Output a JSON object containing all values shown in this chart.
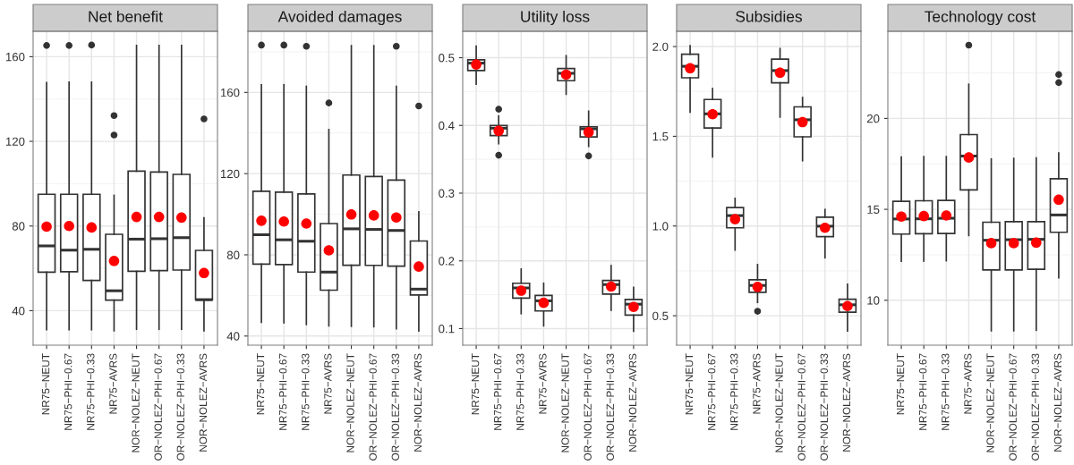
{
  "chart_data": [
    {
      "type": "box",
      "title": "Net benefit",
      "categories": [
        "NR75−NEUT",
        "NR75−PHI−0.67",
        "NR75−PHI−0.33",
        "NR75−AVRS",
        "NOR−NOLEZ−NEUT",
        "OR−NOLEZ−PHI−0.67",
        "OR−NOLEZ−PHI−0.33",
        "NOR−NOLEZ−AVRS"
      ],
      "ylim": [
        23.7,
        172
      ],
      "yticks": [
        40,
        80,
        120,
        160
      ],
      "grid": true,
      "marker": "circle",
      "series": [
        {
          "type": "box",
          "color": "#333333",
          "boxes": [
            {
              "low": 31,
              "q1": 58.2,
              "median": 70.6,
              "q3": 95,
              "high": 147.8,
              "outliers": [
                165.3
              ]
            },
            {
              "low": 31,
              "q1": 58.4,
              "median": 68.6,
              "q3": 95,
              "high": 148,
              "outliers": [
                165.3
              ]
            },
            {
              "low": 31,
              "q1": 54.3,
              "median": 69,
              "q3": 95,
              "high": 148,
              "outliers": [
                165.5
              ]
            },
            {
              "low": 30.5,
              "q1": 45,
              "median": 49.4,
              "q3": 76.1,
              "high": 94.5,
              "outliers": [
                132.2,
                123
              ]
            },
            {
              "low": 31.2,
              "q1": 58.6,
              "median": 73.8,
              "q3": 105.9,
              "high": 165.3
            },
            {
              "low": 31.2,
              "q1": 58.9,
              "median": 74,
              "q3": 105.5,
              "high": 165.3
            },
            {
              "low": 31.2,
              "q1": 59.2,
              "median": 74.5,
              "q3": 104.4,
              "high": 165.3
            },
            {
              "low": 30.5,
              "q1": 45.1,
              "median": 45.2,
              "q3": 68.5,
              "high": 83.9,
              "outliers": [
                130.6
              ]
            }
          ]
        },
        {
          "type": "scatter",
          "color": "#ff0000",
          "x": [
            "NR75−NEUT",
            "NR75−PHI−0.67",
            "NR75−PHI−0.33",
            "NR75−AVRS",
            "NOR−NOLEZ−NEUT",
            "OR−NOLEZ−PHI−0.67",
            "OR−NOLEZ−PHI−0.33",
            "NOR−NOLEZ−AVRS"
          ],
          "values": [
            79.7,
            80,
            79.3,
            63.5,
            84.3,
            84.3,
            84,
            57.8
          ]
        }
      ]
    },
    {
      "type": "box",
      "title": "Avoided damages",
      "categories": [
        "NR75−NEUT",
        "NR75−PHI−0.67",
        "NR75−PHI−0.33",
        "NR75−AVRS",
        "NOR−NOLEZ−NEUT",
        "OR−NOLEZ−PHI−0.67",
        "OR−NOLEZ−PHI−0.33",
        "NOR−NOLEZ−AVRS"
      ],
      "ylim": [
        35.5,
        190.1
      ],
      "yticks": [
        40,
        80,
        120,
        160
      ],
      "grid": true,
      "marker": "circle",
      "series": [
        {
          "type": "box",
          "color": "#333333",
          "boxes": [
            {
              "low": 46.8,
              "q1": 75.4,
              "median": 89.9,
              "q3": 111.3,
              "high": 163.8,
              "outliers": [
                183.3
              ]
            },
            {
              "low": 46.5,
              "q1": 75.2,
              "median": 87.4,
              "q3": 110.9,
              "high": 163.8,
              "outliers": [
                183.3
              ]
            },
            {
              "low": 45.7,
              "q1": 71.5,
              "median": 86.7,
              "q3": 110,
              "high": 163,
              "outliers": [
                182.7
              ]
            },
            {
              "low": 45,
              "q1": 62.6,
              "median": 71.5,
              "q3": 95.4,
              "high": 141.7,
              "outliers": [
                154.8
              ]
            },
            {
              "low": 44.8,
              "q1": 74.9,
              "median": 92.8,
              "q3": 119.3,
              "high": 183
            },
            {
              "low": 44.6,
              "q1": 74.8,
              "median": 92.5,
              "q3": 118.6,
              "high": 183
            },
            {
              "low": 43.6,
              "q1": 74.4,
              "median": 92,
              "q3": 116.8,
              "high": 163,
              "outliers": [
                182.7
              ]
            },
            {
              "low": 42.5,
              "q1": 60.2,
              "median": 63.1,
              "q3": 86.8,
              "high": 101.2,
              "outliers": [
                153.3
              ]
            }
          ]
        },
        {
          "type": "scatter",
          "color": "#ff0000",
          "x": [
            "NR75−NEUT",
            "NR75−PHI−0.67",
            "NR75−PHI−0.33",
            "NR75−AVRS",
            "NOR−NOLEZ−NEUT",
            "OR−NOLEZ−PHI−0.67",
            "OR−NOLEZ−PHI−0.33",
            "NOR−NOLEZ−AVRS"
          ],
          "values": [
            96.8,
            96.4,
            95.4,
            82.2,
            99.9,
            99.4,
            98.4,
            74.2
          ]
        }
      ]
    },
    {
      "type": "box",
      "title": "Utility loss",
      "categories": [
        "NR75−NEUT",
        "NR75−PHI−0.67",
        "NR75−PHI−0.33",
        "NR75−AVRS",
        "NOR−NOLEZ−NEUT",
        "OR−NOLEZ−PHI−0.67",
        "OR−NOLEZ−PHI−0.33",
        "NOR−NOLEZ−AVRS"
      ],
      "ylim": [
        0.0755,
        0.539
      ],
      "yticks": [
        0.1,
        0.2,
        0.3,
        0.4,
        0.5
      ],
      "grid": true,
      "marker": "circle",
      "series": [
        {
          "type": "box",
          "color": "#333333",
          "boxes": [
            {
              "low": 0.461,
              "q1": 0.481,
              "median": 0.492,
              "q3": 0.497,
              "high": 0.517
            },
            {
              "low": 0.373,
              "q1": 0.385,
              "median": 0.396,
              "q3": 0.4,
              "high": 0.414,
              "outliers": [
                0.424,
                0.356
              ]
            },
            {
              "low": 0.122,
              "q1": 0.145,
              "median": 0.16,
              "q3": 0.167,
              "high": 0.188
            },
            {
              "low": 0.104,
              "q1": 0.126,
              "median": 0.141,
              "q3": 0.149,
              "high": 0.167
            },
            {
              "low": 0.446,
              "q1": 0.466,
              "median": 0.477,
              "q3": 0.484,
              "high": 0.503
            },
            {
              "low": 0.369,
              "q1": 0.383,
              "median": 0.395,
              "q3": 0.398,
              "high": 0.421,
              "outliers": [
                0.355
              ]
            },
            {
              "low": 0.127,
              "q1": 0.151,
              "median": 0.165,
              "q3": 0.171,
              "high": 0.193
            },
            {
              "low": 0.096,
              "q1": 0.12,
              "median": 0.136,
              "q3": 0.143,
              "high": 0.161
            }
          ]
        },
        {
          "type": "scatter",
          "color": "#ff0000",
          "x": [
            "NR75−NEUT",
            "NR75−PHI−0.67",
            "NR75−PHI−0.33",
            "NR75−AVRS",
            "NOR−NOLEZ−NEUT",
            "OR−NOLEZ−PHI−0.67",
            "OR−NOLEZ−PHI−0.33",
            "NOR−NOLEZ−AVRS"
          ],
          "values": [
            0.49,
            0.392,
            0.156,
            0.138,
            0.475,
            0.39,
            0.162,
            0.132
          ]
        }
      ]
    },
    {
      "type": "box",
      "title": "Subsidies",
      "categories": [
        "NR75−NEUT",
        "NR75−PHI−0.67",
        "NR75−PHI−0.33",
        "NR75−AVRS",
        "NOR−NOLEZ−NEUT",
        "OR−NOLEZ−PHI−0.67",
        "OR−NOLEZ−PHI−0.33",
        "NOR−NOLEZ−AVRS"
      ],
      "ylim": [
        0.336,
        2.085
      ],
      "yticks": [
        {
          "value": 0.5,
          "label": "0.5"
        },
        {
          "value": 1,
          "label": "1.0"
        },
        {
          "value": 1.5,
          "label": "1.5"
        },
        {
          "value": 2,
          "label": "2.0"
        }
      ],
      "grid": true,
      "marker": "circle",
      "series": [
        {
          "type": "box",
          "color": "#333333",
          "boxes": [
            {
              "low": 1.634,
              "q1": 1.826,
              "median": 1.89,
              "q3": 1.957,
              "high": 2.005
            },
            {
              "low": 1.385,
              "q1": 1.546,
              "median": 1.625,
              "q3": 1.705,
              "high": 1.766
            },
            {
              "low": 0.866,
              "q1": 0.99,
              "median": 1.058,
              "q3": 1.103,
              "high": 1.154
            },
            {
              "low": 0.574,
              "q1": 0.631,
              "median": 0.669,
              "q3": 0.7,
              "high": 0.785,
              "outliers": [
                0.525
              ]
            },
            {
              "low": 1.607,
              "q1": 1.798,
              "median": 1.866,
              "q3": 1.93,
              "high": 1.989
            },
            {
              "low": 1.364,
              "q1": 1.497,
              "median": 1.592,
              "q3": 1.664,
              "high": 1.716
            },
            {
              "low": 0.823,
              "q1": 0.941,
              "median": 0.999,
              "q3": 1.049,
              "high": 1.092
            },
            {
              "low": 0.415,
              "q1": 0.52,
              "median": 0.561,
              "q3": 0.592,
              "high": 0.676
            }
          ]
        },
        {
          "type": "scatter",
          "color": "#ff0000",
          "x": [
            "NR75−NEUT",
            "NR75−PHI−0.67",
            "NR75−PHI−0.33",
            "NR75−AVRS",
            "NOR−NOLEZ−NEUT",
            "OR−NOLEZ−PHI−0.67",
            "OR−NOLEZ−PHI−0.33",
            "NOR−NOLEZ−AVRS"
          ],
          "values": [
            1.879,
            1.623,
            1.038,
            0.661,
            1.854,
            1.579,
            0.99,
            0.554
          ]
        }
      ]
    },
    {
      "type": "box",
      "title": "Technology cost",
      "categories": [
        "NR75−NEUT",
        "NR75−PHI−0.67",
        "NR75−PHI−0.33",
        "NR75−AVRS",
        "NOR−NOLEZ−NEUT",
        "OR−NOLEZ−PHI−0.67",
        "OR−NOLEZ−PHI−0.33",
        "NOR−NOLEZ−AVRS"
      ],
      "ylim": [
        7.53,
        24.79
      ],
      "yticks": [
        10,
        15,
        20
      ],
      "grid": true,
      "marker": "circle",
      "series": [
        {
          "type": "box",
          "color": "#333333",
          "boxes": [
            {
              "low": 12.14,
              "q1": 13.64,
              "median": 14.47,
              "q3": 15.44,
              "high": 17.88
            },
            {
              "low": 12.15,
              "q1": 13.66,
              "median": 14.48,
              "q3": 15.47,
              "high": 17.9
            },
            {
              "low": 12.17,
              "q1": 13.67,
              "median": 14.51,
              "q3": 15.49,
              "high": 17.9
            },
            {
              "low": 13.56,
              "q1": 16.07,
              "median": 17.93,
              "q3": 19.11,
              "high": 21.88,
              "outliers": [
                24.03
              ]
            },
            {
              "low": 8.32,
              "q1": 11.67,
              "median": 13.3,
              "q3": 14.29,
              "high": 17.77
            },
            {
              "low": 8.32,
              "q1": 11.67,
              "median": 13.33,
              "q3": 14.32,
              "high": 17.8
            },
            {
              "low": 8.35,
              "q1": 11.7,
              "median": 13.35,
              "q3": 14.32,
              "high": 17.83
            },
            {
              "low": 11.23,
              "q1": 13.74,
              "median": 14.69,
              "q3": 16.68,
              "high": 18.1,
              "outliers": [
                22.41,
                21.97
              ]
            }
          ]
        },
        {
          "type": "scatter",
          "color": "#ff0000",
          "x": [
            "NR75−NEUT",
            "NR75−PHI−0.67",
            "NR75−PHI−0.33",
            "NR75−AVRS",
            "NOR−NOLEZ−NEUT",
            "OR−NOLEZ−PHI−0.67",
            "OR−NOLEZ−PHI−0.33",
            "NOR−NOLEZ−AVRS"
          ],
          "values": [
            14.6,
            14.63,
            14.66,
            17.85,
            13.14,
            13.14,
            13.17,
            15.53
          ]
        }
      ]
    }
  ]
}
